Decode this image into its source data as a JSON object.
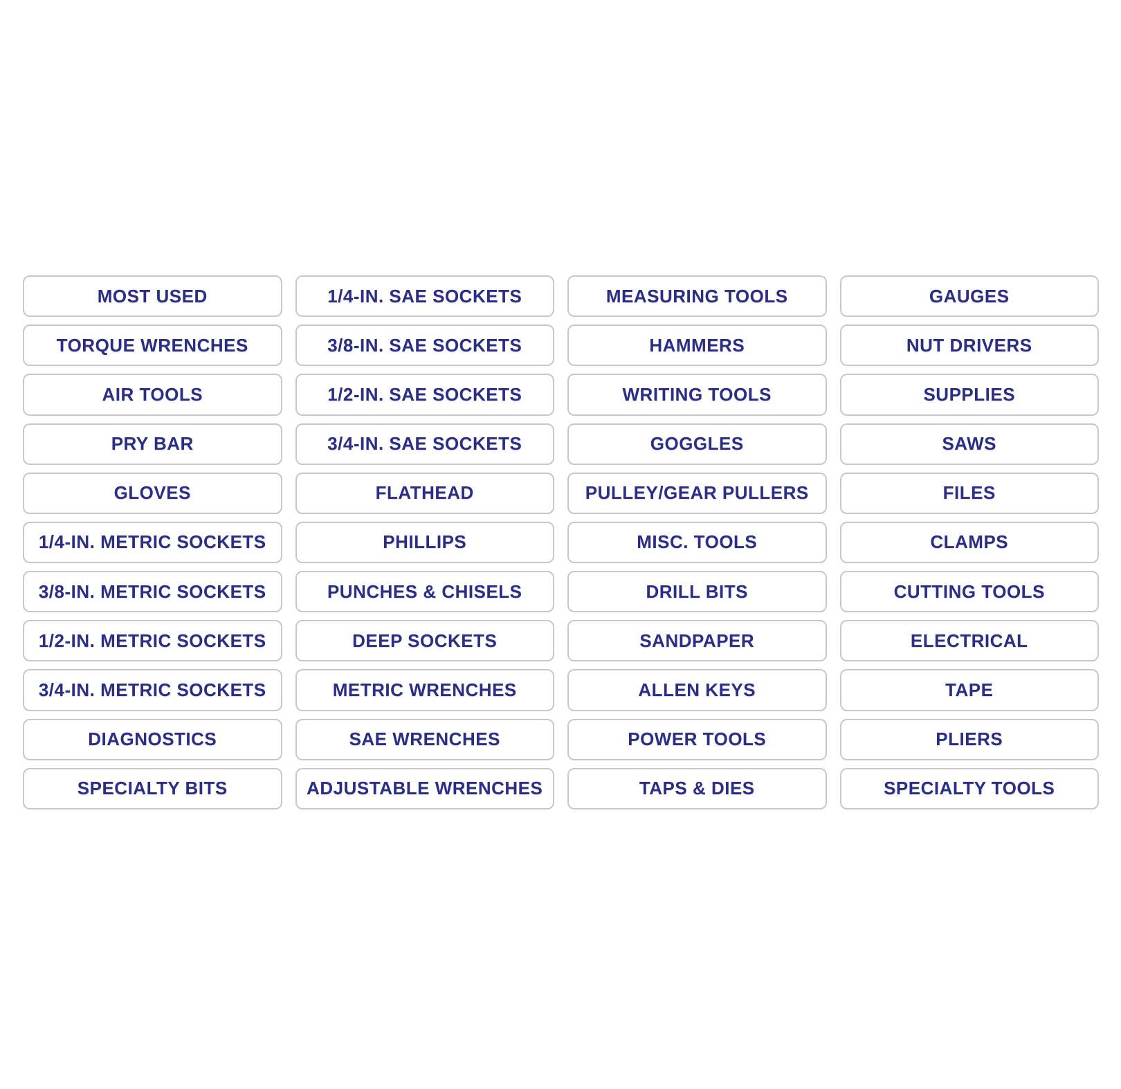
{
  "page": {
    "background_color": "#ffffff"
  },
  "labels": {
    "text_color": "#2b2e85",
    "border_color": "#c7c9c8",
    "background_color": "#fefefe",
    "columns": [
      {
        "items": [
          "MOST USED",
          "TORQUE WRENCHES",
          "AIR TOOLS",
          "PRY BAR",
          "GLOVES",
          "1/4-IN. METRIC SOCKETS",
          "3/8-IN. METRIC SOCKETS",
          "1/2-IN. METRIC SOCKETS",
          "3/4-IN. METRIC SOCKETS",
          "DIAGNOSTICS",
          "SPECIALTY BITS"
        ]
      },
      {
        "items": [
          "1/4-IN. SAE SOCKETS",
          "3/8-IN. SAE SOCKETS",
          "1/2-IN. SAE SOCKETS",
          "3/4-IN. SAE SOCKETS",
          "FLATHEAD",
          "PHILLIPS",
          "PUNCHES & CHISELS",
          "DEEP SOCKETS",
          "METRIC WRENCHES",
          "SAE WRENCHES",
          "ADJUSTABLE WRENCHES"
        ]
      },
      {
        "items": [
          "MEASURING TOOLS",
          "HAMMERS",
          "WRITING TOOLS",
          "GOGGLES",
          "PULLEY/GEAR PULLERS",
          "MISC. TOOLS",
          "DRILL BITS",
          "SANDPAPER",
          "ALLEN KEYS",
          "POWER TOOLS",
          "TAPS & DIES"
        ]
      },
      {
        "items": [
          "GAUGES",
          "NUT DRIVERS",
          "SUPPLIES",
          "SAWS",
          "FILES",
          "CLAMPS",
          "CUTTING TOOLS",
          "ELECTRICAL",
          "TAPE",
          "PLIERS",
          "SPECIALTY TOOLS"
        ]
      }
    ]
  }
}
